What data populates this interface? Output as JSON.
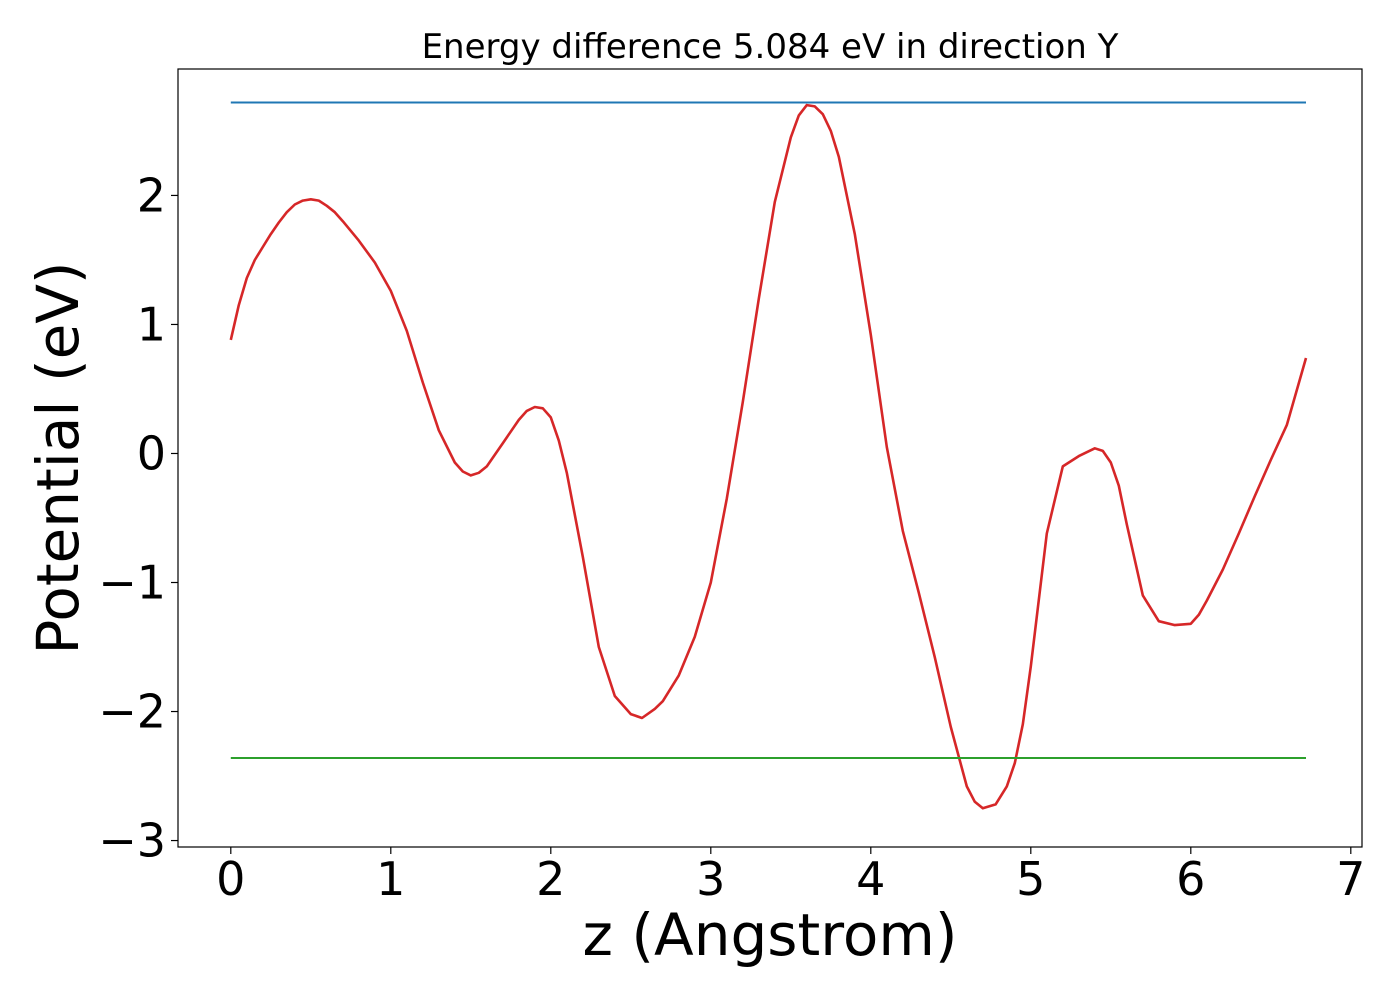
{
  "chart_data": {
    "type": "line",
    "title": "Energy difference 5.084 eV in direction Y",
    "xlabel": "z (Angstrom)",
    "ylabel": "Potential (eV)",
    "xlim": [
      -0.33,
      7.07
    ],
    "ylim": [
      -3.05,
      2.98
    ],
    "xticks": [
      0,
      1,
      2,
      3,
      4,
      5,
      6,
      7
    ],
    "xtick_labels": [
      "0",
      "1",
      "2",
      "3",
      "4",
      "5",
      "6",
      "7"
    ],
    "yticks": [
      2,
      1,
      0,
      -1,
      -2,
      -3
    ],
    "ytick_labels": [
      "2",
      "1",
      "0",
      "−1",
      "−2",
      "−3"
    ],
    "grid": false,
    "series": [
      {
        "color": "#d62728",
        "x": [
          0,
          0.05,
          0.1,
          0.15,
          0.2,
          0.25,
          0.3,
          0.35,
          0.4,
          0.45,
          0.5,
          0.55,
          0.6,
          0.65,
          0.7,
          0.8,
          0.9,
          1.0,
          1.1,
          1.2,
          1.3,
          1.4,
          1.45,
          1.5,
          1.55,
          1.6,
          1.7,
          1.8,
          1.85,
          1.9,
          1.95,
          2.0,
          2.05,
          2.1,
          2.2,
          2.3,
          2.4,
          2.5,
          2.57,
          2.65,
          2.7,
          2.8,
          2.9,
          3.0,
          3.1,
          3.2,
          3.3,
          3.4,
          3.5,
          3.55,
          3.6,
          3.65,
          3.7,
          3.75,
          3.8,
          3.9,
          4.0,
          4.1,
          4.2,
          4.3,
          4.4,
          4.5,
          4.6,
          4.65,
          4.7,
          4.78,
          4.85,
          4.9,
          4.95,
          5.0,
          5.1,
          5.2,
          5.3,
          5.4,
          5.45,
          5.5,
          5.55,
          5.6,
          5.7,
          5.8,
          5.9,
          6.0,
          6.05,
          6.1,
          6.2,
          6.3,
          6.4,
          6.5,
          6.6,
          6.72
        ],
        "y": [
          0.88,
          1.15,
          1.36,
          1.5,
          1.6,
          1.7,
          1.79,
          1.87,
          1.93,
          1.96,
          1.97,
          1.96,
          1.92,
          1.87,
          1.8,
          1.65,
          1.48,
          1.26,
          0.95,
          0.55,
          0.18,
          -0.07,
          -0.14,
          -0.17,
          -0.15,
          -0.1,
          0.08,
          0.26,
          0.33,
          0.36,
          0.35,
          0.28,
          0.1,
          -0.15,
          -0.8,
          -1.5,
          -1.88,
          -2.02,
          -2.05,
          -1.98,
          -1.92,
          -1.72,
          -1.42,
          -1.0,
          -0.35,
          0.4,
          1.2,
          1.95,
          2.45,
          2.62,
          2.7,
          2.69,
          2.63,
          2.5,
          2.3,
          1.7,
          0.92,
          0.05,
          -0.6,
          -1.08,
          -1.58,
          -2.12,
          -2.58,
          -2.7,
          -2.75,
          -2.72,
          -2.58,
          -2.4,
          -2.1,
          -1.65,
          -0.62,
          -0.1,
          -0.02,
          0.04,
          0.02,
          -0.07,
          -0.25,
          -0.55,
          -1.1,
          -1.3,
          -1.33,
          -1.32,
          -1.25,
          -1.14,
          -0.9,
          -0.62,
          -0.33,
          -0.05,
          0.22,
          0.74
        ]
      },
      {
        "color": "#1f77b4",
        "x": [
          0,
          6.72
        ],
        "y": [
          2.72,
          2.72
        ]
      },
      {
        "color": "#2ca02c",
        "x": [
          0,
          6.72
        ],
        "y": [
          -2.36,
          -2.36
        ]
      }
    ]
  }
}
